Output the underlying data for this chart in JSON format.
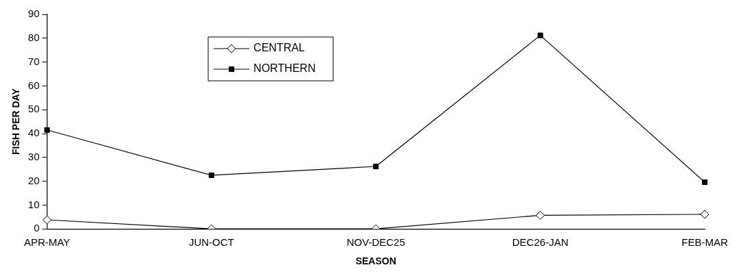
{
  "chart_data": {
    "type": "line",
    "xlabel": "SEASON",
    "ylabel": "FISH PER DAY",
    "categories": [
      "APR-MAY",
      "JUN-OCT",
      "NOV-DEC25",
      "DEC26-JAN",
      "FEB-MAR"
    ],
    "series": [
      {
        "name": "CENTRAL",
        "color": "#000000",
        "marker": "diamond",
        "values": [
          3.8,
          0,
          0,
          5.7,
          6.1
        ]
      },
      {
        "name": "NORTHERN",
        "color": "#000000",
        "marker": "square",
        "values": [
          41.5,
          22.5,
          26.2,
          81.2,
          19.6
        ]
      }
    ],
    "ylim": [
      0,
      90
    ],
    "yticks": [
      0,
      10,
      20,
      30,
      40,
      50,
      60,
      70,
      80,
      90
    ],
    "grid": false,
    "legend": "top left",
    "line_style": "solid"
  }
}
